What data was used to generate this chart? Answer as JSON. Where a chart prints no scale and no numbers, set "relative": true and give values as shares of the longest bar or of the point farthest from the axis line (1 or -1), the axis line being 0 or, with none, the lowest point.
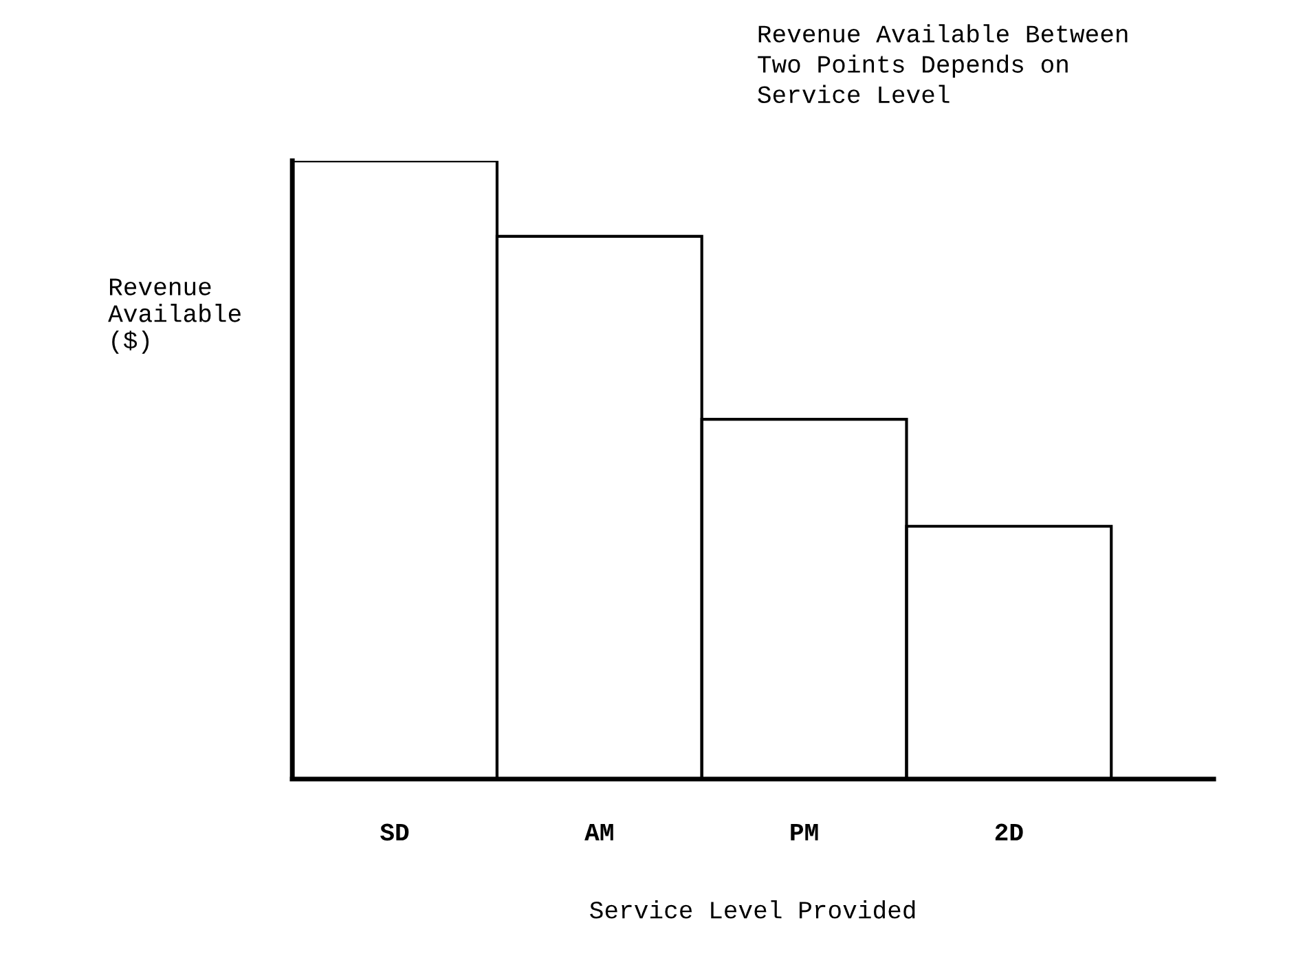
{
  "chart_data": {
    "type": "bar",
    "title": "Revenue Available Between\nTwo Points Depends on\nService Level",
    "xlabel": "Service Level Provided",
    "ylabel": "Revenue\nAvailable\n($)",
    "categories": [
      "SD",
      "AM",
      "PM",
      "2D"
    ],
    "values": [
      1,
      0.878,
      0.582,
      0.409
    ],
    "color": "#000000",
    "relative": true,
    "grid": false,
    "legend": false
  }
}
